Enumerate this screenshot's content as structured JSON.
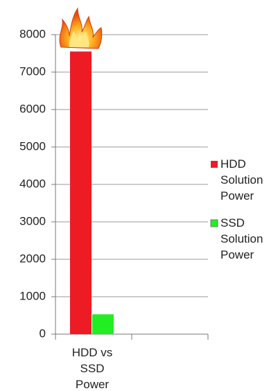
{
  "chart_data": {
    "type": "bar",
    "categories": [
      "HDD vs SSD Power",
      null
    ],
    "series": [
      {
        "name": "HDD Solution Power",
        "color": "#ed1c24",
        "values": [
          7550,
          null
        ]
      },
      {
        "name": "SSD Solution Power",
        "color": "#22ee22",
        "values": [
          530,
          null
        ]
      }
    ],
    "ylim": [
      0,
      8000
    ],
    "yticks": [
      0,
      1000,
      2000,
      3000,
      4000,
      5000,
      6000,
      7000,
      8000
    ],
    "grid": true,
    "legend": "right"
  }
}
